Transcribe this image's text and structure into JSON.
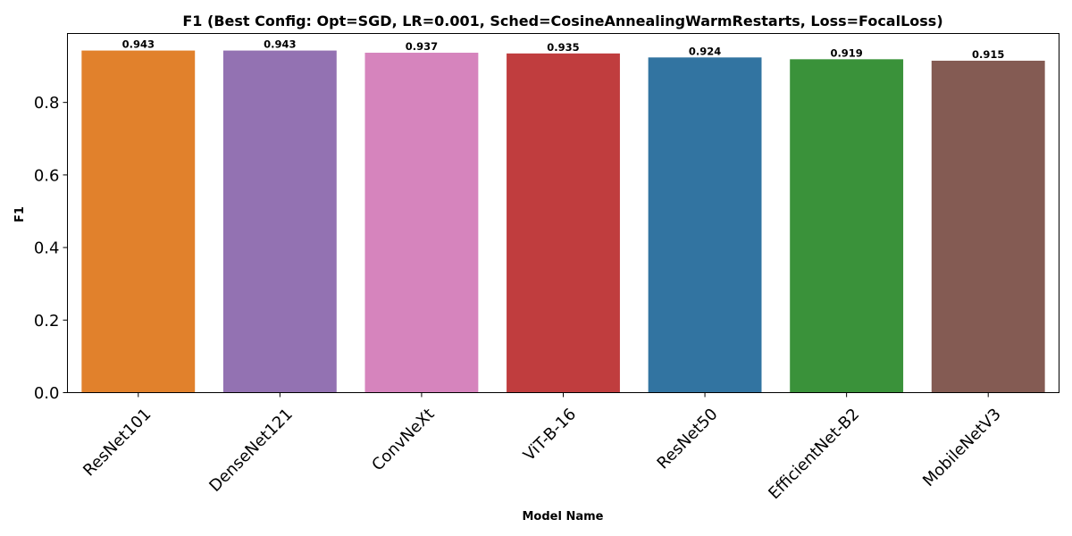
{
  "chart_data": {
    "type": "bar",
    "title": "F1 (Best Config: Opt=SGD, LR=0.001, Sched=CosineAnnealingWarmRestarts, Loss=FocalLoss)",
    "xlabel": "Model Name",
    "ylabel": "F1",
    "categories": [
      "ResNet101",
      "DenseNet121",
      "ConvNeXt",
      "ViT-B-16",
      "ResNet50",
      "EfficientNet-B2",
      "MobileNetV3"
    ],
    "values": [
      0.943,
      0.943,
      0.937,
      0.935,
      0.924,
      0.919,
      0.915
    ],
    "data_labels": [
      "0.943",
      "0.943",
      "0.937",
      "0.935",
      "0.924",
      "0.919",
      "0.915"
    ],
    "colors": [
      "#e1812c",
      "#9372b2",
      "#d684bd",
      "#c03d3e",
      "#3274a1",
      "#3a923a",
      "#845b53"
    ],
    "yticks": [
      0.0,
      0.2,
      0.4,
      0.6,
      0.8
    ],
    "ytick_labels": [
      "0.0",
      "0.2",
      "0.4",
      "0.6",
      "0.8"
    ],
    "ylim": [
      0,
      0.99
    ],
    "grid": false,
    "legend": "none"
  }
}
